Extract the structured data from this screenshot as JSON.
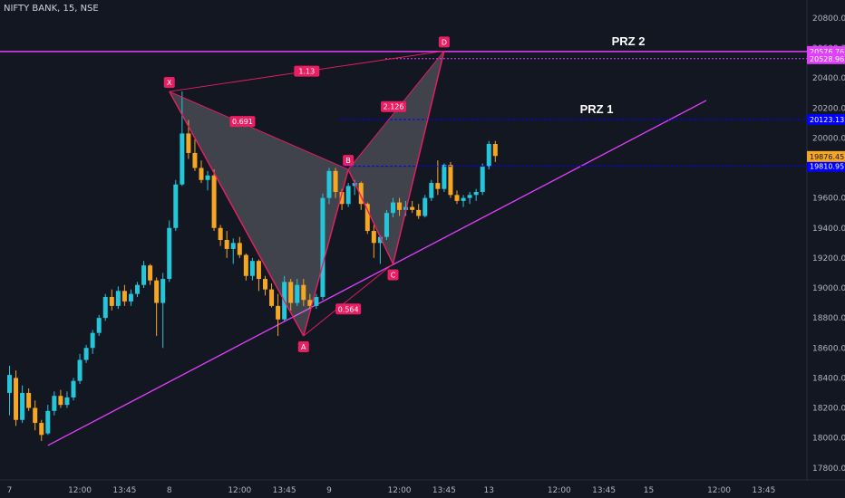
{
  "header": {
    "title": "NIFTY BANK, 15, NSE"
  },
  "colors": {
    "background": "#131722",
    "bull": "#26c6da",
    "bear": "#f5a623",
    "pattern": "#e91e63",
    "trendline": "#e040fb",
    "prz_line": "#0000ff",
    "prz2_line": "#e040fb",
    "price_current": "#f5a623"
  },
  "chart_data": {
    "type": "candlestick",
    "title": "NIFTY BANK, 15, NSE",
    "y_axis": {
      "ticks": [
        17800,
        18000,
        18200,
        18400,
        18600,
        18800,
        19000,
        19200,
        19400,
        19600,
        19800,
        20000,
        20200,
        20400,
        20600,
        20800
      ],
      "tick_labels": [
        "17800.00",
        "18000.00",
        "18200.00",
        "18400.00",
        "18600.00",
        "18800.00",
        "19000.00",
        "19200.00",
        "19400.00",
        "19600.00",
        "19800.00",
        "20000.00",
        "20200.00",
        "20400.00",
        "20600.00",
        "20800.00"
      ],
      "range": [
        17720,
        20920
      ]
    },
    "x_axis": {
      "tick_labels": [
        "7",
        "12:00",
        "13:45",
        "8",
        "12:00",
        "13:45",
        "9",
        "12:00",
        "13:45",
        "13",
        "12:00",
        "13:45",
        "15",
        "12:00",
        "13:45"
      ],
      "tick_bars": [
        0,
        11,
        18,
        25,
        36,
        43,
        50,
        61,
        68,
        75,
        86,
        93,
        100,
        111,
        118
      ]
    },
    "candles": [
      {
        "o": 18300,
        "h": 18480,
        "l": 18150,
        "c": 18420
      },
      {
        "o": 18400,
        "h": 18450,
        "l": 18080,
        "c": 18120
      },
      {
        "o": 18120,
        "h": 18350,
        "l": 18100,
        "c": 18300
      },
      {
        "o": 18300,
        "h": 18330,
        "l": 18180,
        "c": 18200
      },
      {
        "o": 18200,
        "h": 18250,
        "l": 18050,
        "c": 18100
      },
      {
        "o": 18100,
        "h": 18120,
        "l": 17980,
        "c": 18020
      },
      {
        "o": 18030,
        "h": 18220,
        "l": 18020,
        "c": 18180
      },
      {
        "o": 18180,
        "h": 18310,
        "l": 18150,
        "c": 18280
      },
      {
        "o": 18280,
        "h": 18320,
        "l": 18200,
        "c": 18220
      },
      {
        "o": 18220,
        "h": 18310,
        "l": 18200,
        "c": 18270
      },
      {
        "o": 18270,
        "h": 18400,
        "l": 18250,
        "c": 18380
      },
      {
        "o": 18380,
        "h": 18560,
        "l": 18360,
        "c": 18520
      },
      {
        "o": 18520,
        "h": 18620,
        "l": 18500,
        "c": 18600
      },
      {
        "o": 18600,
        "h": 18720,
        "l": 18560,
        "c": 18700
      },
      {
        "o": 18700,
        "h": 18820,
        "l": 18680,
        "c": 18800
      },
      {
        "o": 18800,
        "h": 18960,
        "l": 18780,
        "c": 18940
      },
      {
        "o": 18940,
        "h": 18990,
        "l": 18850,
        "c": 18880
      },
      {
        "o": 18880,
        "h": 19010,
        "l": 18860,
        "c": 18980
      },
      {
        "o": 18980,
        "h": 19020,
        "l": 18880,
        "c": 18910
      },
      {
        "o": 18910,
        "h": 18990,
        "l": 18880,
        "c": 18960
      },
      {
        "o": 18960,
        "h": 19040,
        "l": 18940,
        "c": 19020
      },
      {
        "o": 19020,
        "h": 19180,
        "l": 19000,
        "c": 19150
      },
      {
        "o": 19150,
        "h": 19160,
        "l": 19020,
        "c": 19050
      },
      {
        "o": 19050,
        "h": 19070,
        "l": 18680,
        "c": 18900
      },
      {
        "o": 18900,
        "h": 19100,
        "l": 18600,
        "c": 19060
      },
      {
        "o": 19060,
        "h": 19450,
        "l": 19040,
        "c": 19400
      },
      {
        "o": 19400,
        "h": 19720,
        "l": 19380,
        "c": 19690
      },
      {
        "o": 19690,
        "h": 20310,
        "l": 19680,
        "c": 20030
      },
      {
        "o": 20030,
        "h": 20120,
        "l": 19860,
        "c": 19900
      },
      {
        "o": 19900,
        "h": 19990,
        "l": 19780,
        "c": 19800
      },
      {
        "o": 19800,
        "h": 19850,
        "l": 19700,
        "c": 19720
      },
      {
        "o": 19720,
        "h": 19780,
        "l": 19650,
        "c": 19750
      },
      {
        "o": 19750,
        "h": 19790,
        "l": 19380,
        "c": 19400
      },
      {
        "o": 19400,
        "h": 19420,
        "l": 19280,
        "c": 19320
      },
      {
        "o": 19320,
        "h": 19380,
        "l": 19200,
        "c": 19260
      },
      {
        "o": 19260,
        "h": 19330,
        "l": 19160,
        "c": 19300
      },
      {
        "o": 19300,
        "h": 19340,
        "l": 19200,
        "c": 19220
      },
      {
        "o": 19220,
        "h": 19230,
        "l": 19050,
        "c": 19080
      },
      {
        "o": 19080,
        "h": 19200,
        "l": 19050,
        "c": 19180
      },
      {
        "o": 19180,
        "h": 19190,
        "l": 18980,
        "c": 19060
      },
      {
        "o": 19060,
        "h": 19080,
        "l": 18950,
        "c": 18990
      },
      {
        "o": 18990,
        "h": 19030,
        "l": 18870,
        "c": 18880
      },
      {
        "o": 18880,
        "h": 18960,
        "l": 18680,
        "c": 18790
      },
      {
        "o": 18790,
        "h": 19080,
        "l": 18780,
        "c": 19040
      },
      {
        "o": 19040,
        "h": 19060,
        "l": 18850,
        "c": 18900
      },
      {
        "o": 18900,
        "h": 19060,
        "l": 18880,
        "c": 19020
      },
      {
        "o": 19020,
        "h": 19060,
        "l": 18880,
        "c": 18920
      },
      {
        "o": 18920,
        "h": 18960,
        "l": 18860,
        "c": 18880
      },
      {
        "o": 18880,
        "h": 18960,
        "l": 18860,
        "c": 18940
      },
      {
        "o": 18940,
        "h": 19630,
        "l": 18920,
        "c": 19600
      },
      {
        "o": 19600,
        "h": 19800,
        "l": 19560,
        "c": 19780
      },
      {
        "o": 19780,
        "h": 19800,
        "l": 19600,
        "c": 19640
      },
      {
        "o": 19640,
        "h": 19660,
        "l": 19520,
        "c": 19560
      },
      {
        "o": 19560,
        "h": 19700,
        "l": 19540,
        "c": 19680
      },
      {
        "o": 19680,
        "h": 19720,
        "l": 19620,
        "c": 19700
      },
      {
        "o": 19700,
        "h": 19710,
        "l": 19520,
        "c": 19560
      },
      {
        "o": 19560,
        "h": 19570,
        "l": 19360,
        "c": 19380
      },
      {
        "o": 19380,
        "h": 19420,
        "l": 19200,
        "c": 19300
      },
      {
        "o": 19300,
        "h": 19350,
        "l": 19160,
        "c": 19340
      },
      {
        "o": 19340,
        "h": 19520,
        "l": 19320,
        "c": 19500
      },
      {
        "o": 19500,
        "h": 19600,
        "l": 19470,
        "c": 19570
      },
      {
        "o": 19570,
        "h": 19600,
        "l": 19480,
        "c": 19520
      },
      {
        "o": 19520,
        "h": 19580,
        "l": 19480,
        "c": 19540
      },
      {
        "o": 19540,
        "h": 19580,
        "l": 19500,
        "c": 19520
      },
      {
        "o": 19520,
        "h": 19560,
        "l": 19460,
        "c": 19480
      },
      {
        "o": 19480,
        "h": 19620,
        "l": 19470,
        "c": 19600
      },
      {
        "o": 19600,
        "h": 19720,
        "l": 19580,
        "c": 19700
      },
      {
        "o": 19700,
        "h": 19850,
        "l": 19620,
        "c": 19660
      },
      {
        "o": 19660,
        "h": 19830,
        "l": 19640,
        "c": 19820
      },
      {
        "o": 19820,
        "h": 19840,
        "l": 19600,
        "c": 19620
      },
      {
        "o": 19620,
        "h": 19650,
        "l": 19560,
        "c": 19580
      },
      {
        "o": 19580,
        "h": 19620,
        "l": 19540,
        "c": 19600
      },
      {
        "o": 19600,
        "h": 19640,
        "l": 19560,
        "c": 19620
      },
      {
        "o": 19620,
        "h": 19660,
        "l": 19580,
        "c": 19640
      },
      {
        "o": 19640,
        "h": 19830,
        "l": 19620,
        "c": 19810
      },
      {
        "o": 19810,
        "h": 19980,
        "l": 19790,
        "c": 19960
      },
      {
        "o": 19960,
        "h": 19980,
        "l": 19840,
        "c": 19880
      }
    ],
    "pattern": {
      "points": [
        {
          "label": "X",
          "bar": 25,
          "price": 20310
        },
        {
          "label": "A",
          "bar": 46,
          "price": 18680
        },
        {
          "label": "B",
          "bar": 53,
          "price": 19790
        },
        {
          "label": "C",
          "bar": 60,
          "price": 19160
        },
        {
          "label": "D",
          "bar": 68,
          "price": 20580
        }
      ],
      "ratios": [
        {
          "label": "0.691",
          "between": [
            "X",
            "B"
          ]
        },
        {
          "label": "0.564",
          "between": [
            "A",
            "C"
          ]
        },
        {
          "label": "2.126",
          "between": [
            "B",
            "D"
          ]
        },
        {
          "label": "1.13",
          "between": [
            "X",
            "D"
          ]
        }
      ]
    },
    "levels": [
      {
        "name": "PRZ 2",
        "price": 20576.76,
        "label": "20576.76",
        "style": "solid",
        "color": "#e040fb"
      },
      {
        "name": "",
        "price": 20528.96,
        "label": "20528.96",
        "style": "dotted",
        "color": "#e040fb"
      },
      {
        "name": "PRZ 1",
        "price": 20123.13,
        "label": "20123.13",
        "style": "dashed",
        "color": "#0000ff"
      },
      {
        "name": "",
        "price": 19810.95,
        "label": "19810.95",
        "style": "dashed",
        "color": "#0000ff"
      }
    ],
    "current_price": {
      "value": 19876.45,
      "label": "19876.45"
    },
    "trendline": {
      "from": {
        "bar": 6,
        "price": 17950
      },
      "to": {
        "bar": 109,
        "price": 20250
      }
    }
  }
}
